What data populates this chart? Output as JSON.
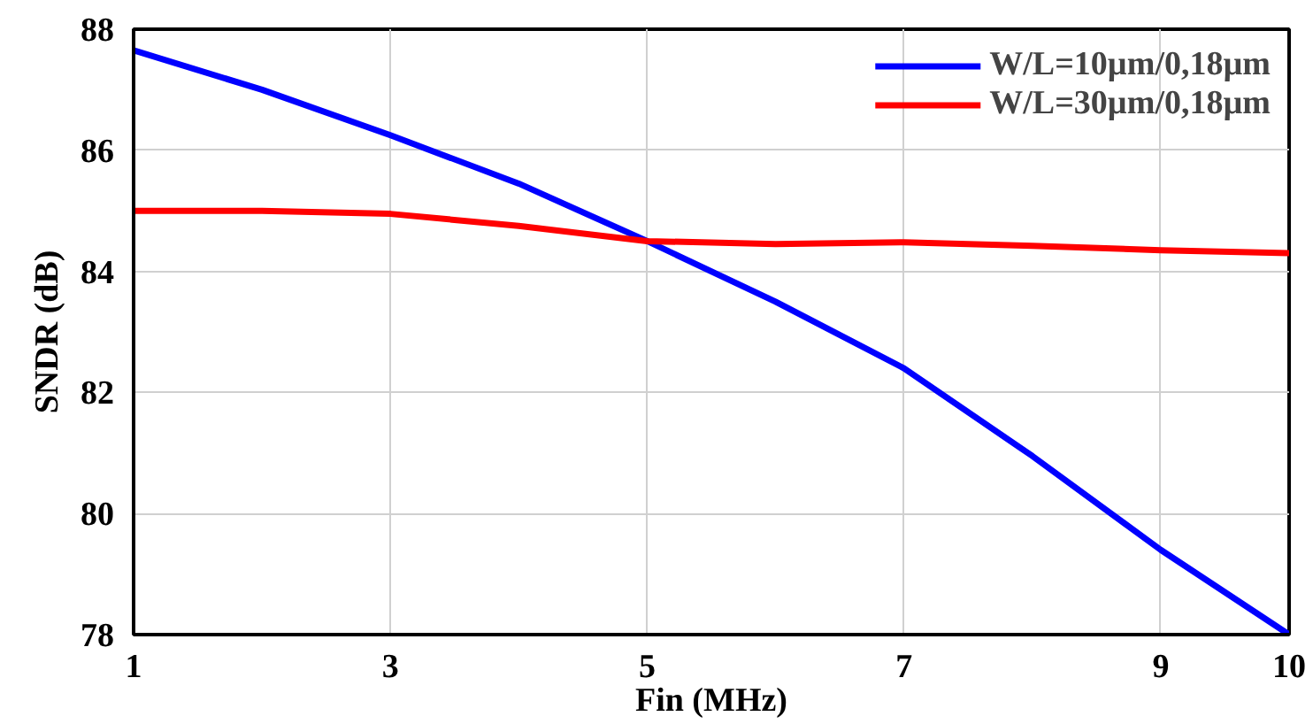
{
  "chart_data": {
    "type": "line",
    "xlabel": "Fin (MHz)",
    "ylabel": "SNDR (dB)",
    "x": [
      1,
      2,
      3,
      4,
      5,
      6,
      7,
      8,
      9,
      10
    ],
    "series": [
      {
        "name": "W/L=10µm/0,18µm",
        "color": "#0000ff",
        "values": [
          87.65,
          87.0,
          86.25,
          85.45,
          84.5,
          83.5,
          82.4,
          80.95,
          79.4,
          78.0
        ]
      },
      {
        "name": "W/L=30µm/0,18µm",
        "color": "#ff0000",
        "values": [
          85.0,
          85.0,
          84.95,
          84.75,
          84.5,
          84.45,
          84.48,
          84.42,
          84.35,
          84.3
        ]
      }
    ],
    "xlim": [
      1,
      10
    ],
    "xticks": [
      1,
      3,
      5,
      7,
      9,
      10
    ],
    "ylim": [
      78,
      88
    ],
    "yticks": [
      78,
      80,
      82,
      84,
      86,
      88
    ],
    "grid": true,
    "legend": "top right",
    "marker": "none",
    "line_style": "solid"
  }
}
